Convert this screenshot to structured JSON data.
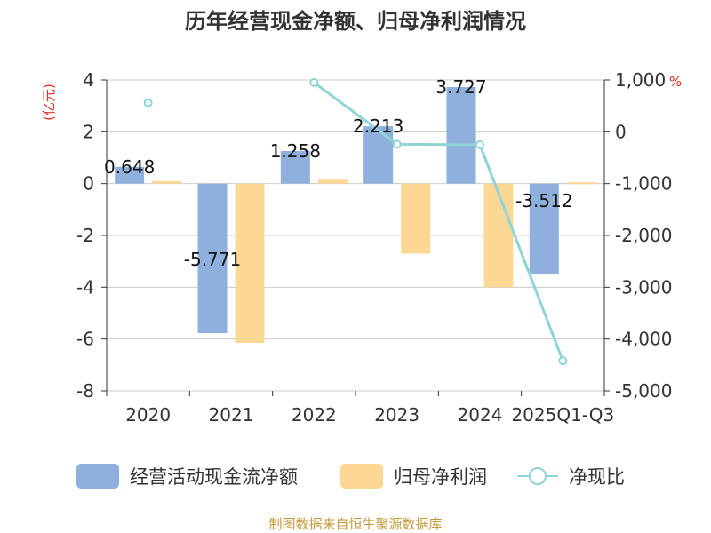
{
  "chart_data": {
    "type": "bar",
    "title": "历年经营现金净额、归母净利润情况",
    "categories": [
      "2020",
      "2021",
      "2022",
      "2023",
      "2024",
      "2025Q1-Q3"
    ],
    "series": [
      {
        "name": "经营活动现金流净额",
        "type": "bar",
        "axis": "left",
        "color": "#8fb0dc",
        "values": [
          0.648,
          -5.771,
          1.258,
          2.213,
          3.727,
          -3.512
        ]
      },
      {
        "name": "归母净利润",
        "type": "bar",
        "axis": "left",
        "color": "#fdd895",
        "values": [
          0.1,
          -6.15,
          0.15,
          -2.7,
          -4.0,
          0.05
        ]
      },
      {
        "name": "净现比",
        "type": "line",
        "axis": "right",
        "color": "#8fd4d6",
        "values": [
          560,
          null,
          950,
          -240,
          -250,
          -4420
        ]
      }
    ],
    "data_labels": [
      "0.648",
      "-5.771",
      "1.258",
      "2.213",
      "3.727",
      "-3.512"
    ],
    "y_left": {
      "unit": "(亿元)",
      "min": -8,
      "max": 4,
      "ticks": [
        "4",
        "2",
        "0",
        "-2",
        "-4",
        "-6",
        "-8"
      ]
    },
    "y_right": {
      "unit": "%",
      "min": -5000,
      "max": 1000,
      "ticks": [
        "1,000",
        "0",
        "-1,000",
        "-2,000",
        "-3,000",
        "-4,000",
        "-5,000"
      ]
    },
    "grid": true,
    "legend_position": "bottom"
  },
  "legend": [
    "经营活动现金流净额",
    "归母净利润",
    "净现比"
  ],
  "source": "制图数据来自恒生聚源数据库"
}
